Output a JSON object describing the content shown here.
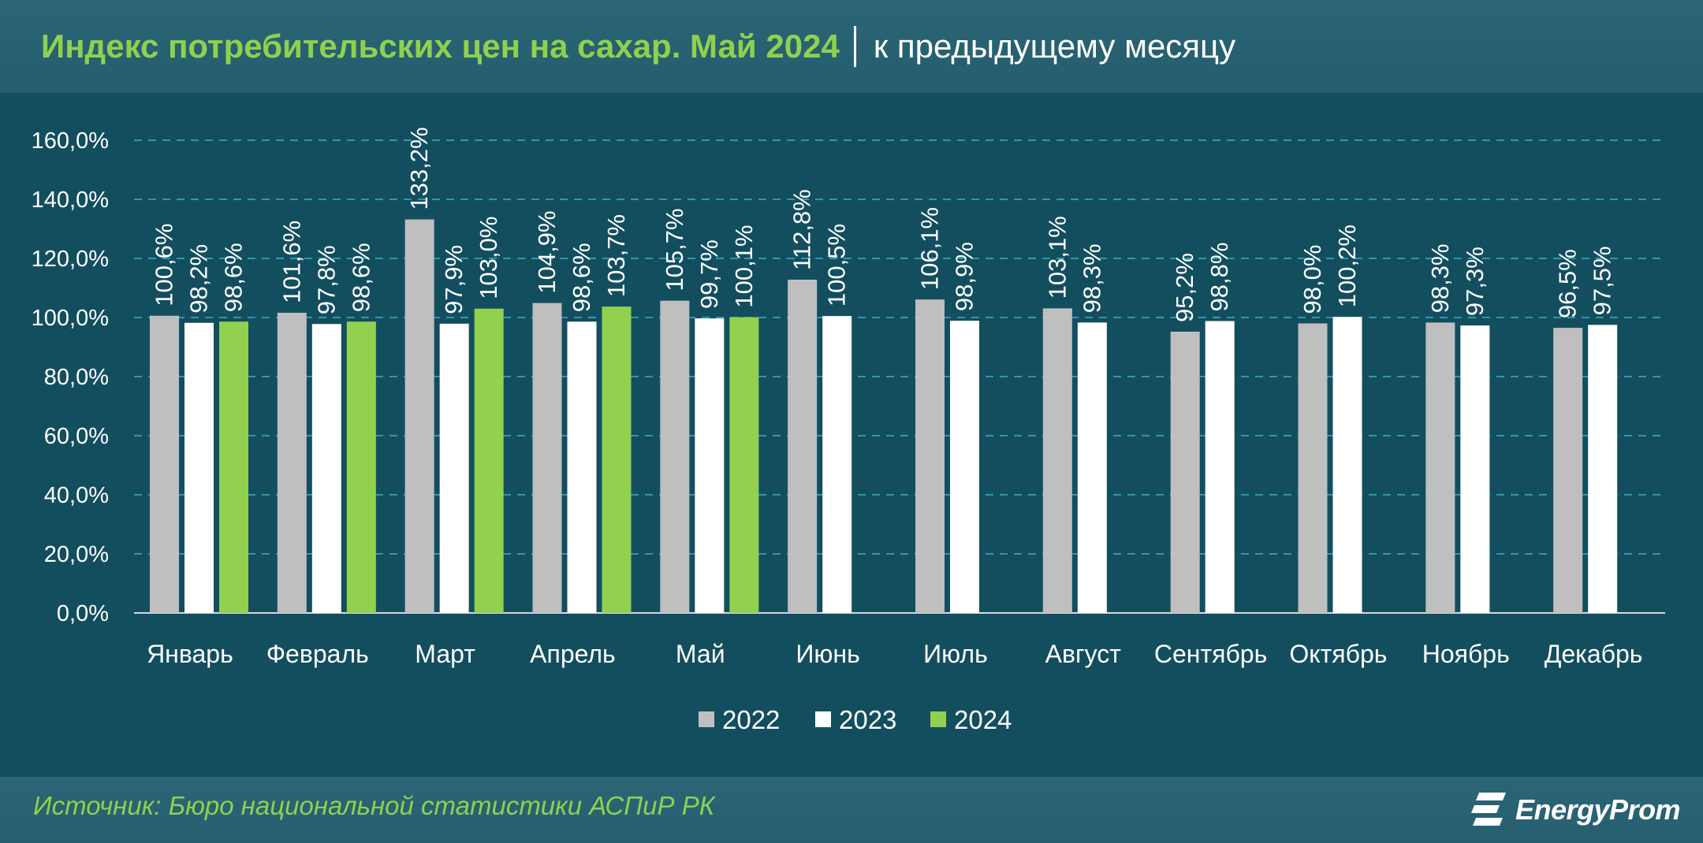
{
  "header": {
    "title": "Индекс потребительских цен на сахар. Май 2024",
    "subtitle": "к предыдущему месяцу"
  },
  "footer": {
    "source": "Источник: Бюро национальной статистики АСПиР РК",
    "logo_text": "EnergyProm",
    "logo_icon": "energyprom-logo-icon"
  },
  "colors": {
    "background": "#134e5f",
    "header_band": "#2a6373",
    "title_green": "#8fd14f",
    "series_2022": "#bfbfbf",
    "series_2023": "#ffffff",
    "series_2024": "#92d050",
    "grid": "#2e97b0"
  },
  "chart_data": {
    "type": "bar",
    "title": "Индекс потребительских цен на сахар. Май 2024",
    "subtitle": "к предыдущему месяцу",
    "xlabel": "",
    "ylabel": "",
    "ylim": [
      0,
      160
    ],
    "yticks": [
      "0,0%",
      "20,0%",
      "40,0%",
      "60,0%",
      "80,0%",
      "100,0%",
      "120,0%",
      "140,0%",
      "160,0%"
    ],
    "grid": true,
    "legend_position": "bottom",
    "categories": [
      "Январь",
      "Февраль",
      "Март",
      "Апрель",
      "Май",
      "Июнь",
      "Июль",
      "Август",
      "Сентябрь",
      "Октябрь",
      "Ноябрь",
      "Декабрь"
    ],
    "series": [
      {
        "name": "2022",
        "color": "#bfbfbf",
        "values": [
          100.6,
          101.6,
          133.2,
          104.9,
          105.7,
          112.8,
          106.1,
          103.1,
          95.2,
          98.0,
          98.3,
          96.5
        ],
        "labels": [
          "100,6%",
          "101,6%",
          "133,2%",
          "104,9%",
          "105,7%",
          "112,8%",
          "106,1%",
          "103,1%",
          "95,2%",
          "98,0%",
          "98,3%",
          "96,5%"
        ]
      },
      {
        "name": "2023",
        "color": "#ffffff",
        "values": [
          98.2,
          97.8,
          97.9,
          98.6,
          99.7,
          100.5,
          98.9,
          98.3,
          98.8,
          100.2,
          97.3,
          97.5
        ],
        "labels": [
          "98,2%",
          "97,8%",
          "97,9%",
          "98,6%",
          "99,7%",
          "100,5%",
          "98,9%",
          "98,3%",
          "98,8%",
          "100,2%",
          "97,3%",
          "97,5%"
        ]
      },
      {
        "name": "2024",
        "color": "#92d050",
        "values": [
          98.6,
          98.6,
          103.0,
          103.7,
          100.1,
          null,
          null,
          null,
          null,
          null,
          null,
          null
        ],
        "labels": [
          "98,6%",
          "98,6%",
          "103,0%",
          "103,7%",
          "100,1%",
          null,
          null,
          null,
          null,
          null,
          null,
          null
        ]
      }
    ]
  }
}
